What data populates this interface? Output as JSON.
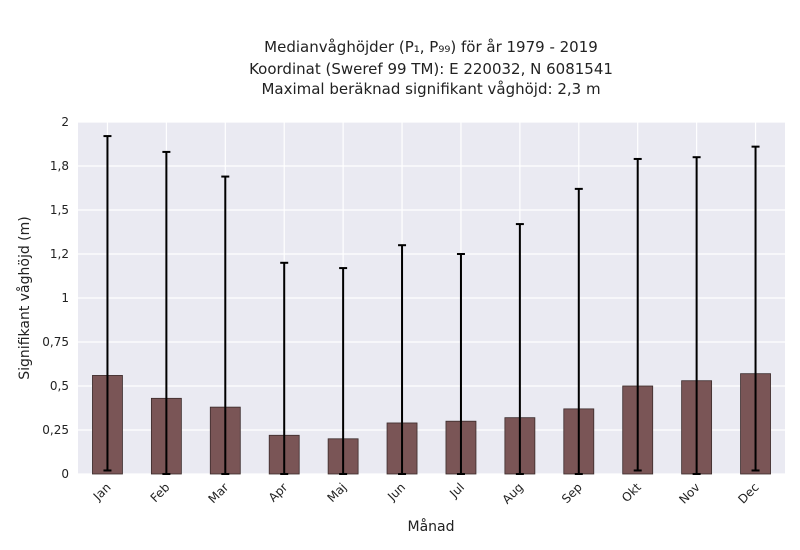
{
  "chart_data": {
    "type": "bar",
    "title_lines": [
      "Medianvåghöjder (P₁, P₉₉) för år 1979 - 2019",
      "Koordinat (Sweref 99 TM): E 220032, N 6081541",
      "Maximal beräknad signifikant våghöjd: 2,3 m"
    ],
    "xlabel": "Månad",
    "ylabel": "Signifikant våghöjd (m)",
    "categories": [
      "Jan",
      "Feb",
      "Mar",
      "Apr",
      "Maj",
      "Jun",
      "Jul",
      "Aug",
      "Sep",
      "Okt",
      "Nov",
      "Dec"
    ],
    "values": [
      0.56,
      0.43,
      0.38,
      0.22,
      0.2,
      0.29,
      0.3,
      0.32,
      0.37,
      0.5,
      0.53,
      0.57
    ],
    "p1": [
      0.02,
      0.0,
      0.0,
      0.0,
      0.0,
      0.0,
      0.0,
      0.0,
      0.0,
      0.02,
      0.0,
      0.02
    ],
    "p99": [
      1.92,
      1.83,
      1.69,
      1.2,
      1.17,
      1.3,
      1.25,
      1.42,
      1.62,
      1.79,
      1.8,
      1.86
    ],
    "yticks": [
      0,
      0.25,
      0.5,
      0.75,
      1,
      1.25,
      1.5,
      1.75,
      2
    ],
    "ytick_labels": [
      "0",
      "0,25",
      "0,5",
      "0,75",
      "1",
      "1,2",
      "1,5",
      "1,8",
      "2"
    ],
    "ylim": [
      0,
      2
    ],
    "grid": true,
    "colors": {
      "bar": "#7a5556",
      "bar_edge": "#3a2a2a",
      "error_bar": "#000000",
      "plot_bg": "#eaeaf2",
      "grid": "#ffffff"
    }
  }
}
